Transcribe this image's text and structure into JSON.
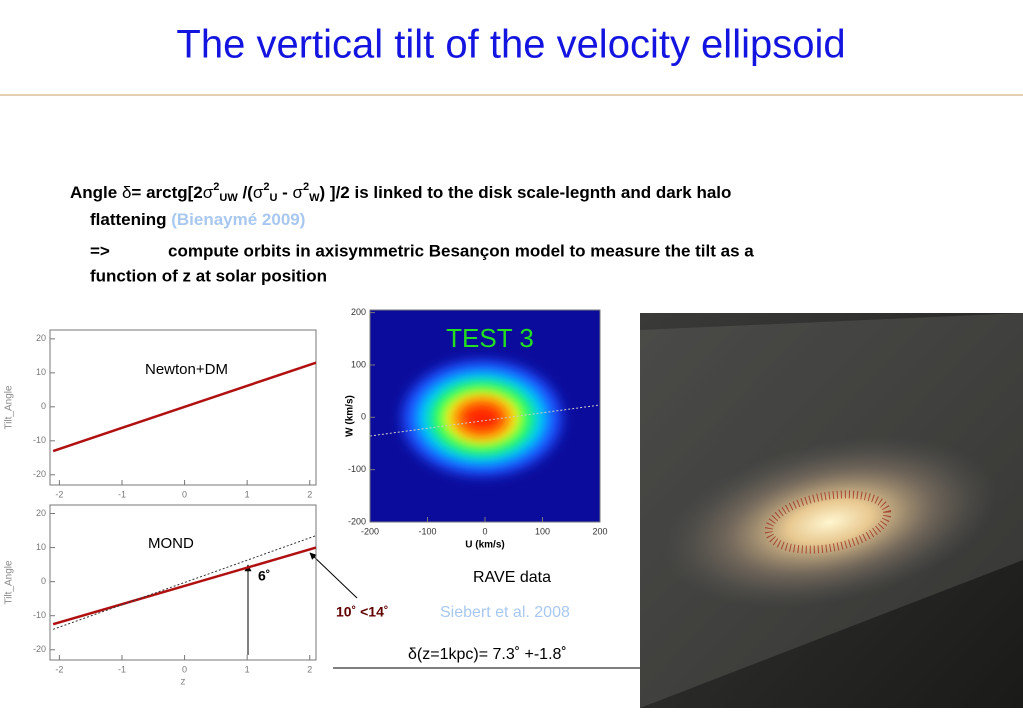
{
  "title": "The vertical tilt of the velocity ellipsoid",
  "bullet1": [
    "Angle ",
    "δ",
    "= arctg[2",
    "σ",
    "2",
    "UW",
    " /(",
    "σ",
    "2",
    "U",
    " - ",
    "σ",
    "2",
    "W",
    ") ]/2 is linked to the disk scale-legnth and dark halo",
    "flattening ",
    "(Bienaymé 2009)"
  ],
  "bullet2": [
    "=>",
    "compute orbits in axisymmetric Besançon model to measure the tilt as a",
    "function of z at solar position"
  ],
  "panels": [
    {
      "label": "Newton+DM",
      "ylabel": "Tilt_Angle",
      "xlim": [
        -2.15,
        2.1
      ],
      "ylim": [
        -23,
        22.6
      ],
      "xticks": [
        -2,
        -1,
        0,
        1,
        2
      ],
      "yticks": [
        -20,
        -10,
        0,
        10,
        20
      ],
      "series": [
        {
          "color": "#b01010",
          "x": [
            -2.1,
            2.1
          ],
          "values": [
            -13,
            13
          ]
        }
      ]
    },
    {
      "label": "MOND",
      "ylabel": "Tilt_Angle",
      "xlabel": "z",
      "xlim": [
        -2.15,
        2.1
      ],
      "ylim": [
        -23,
        22.5
      ],
      "xticks": [
        -2,
        -1,
        0,
        1,
        2
      ],
      "yticks": [
        -20,
        -10,
        0,
        10,
        20
      ],
      "series": [
        {
          "color": "#b01010",
          "x": [
            -2.1,
            2.1
          ],
          "values": [
            -12.5,
            10
          ]
        },
        {
          "color": "#333333",
          "dotted": true,
          "x": [
            -2.1,
            2.1
          ],
          "values": [
            -14,
            13.5
          ]
        }
      ]
    }
  ],
  "heatmap": {
    "title": "TEST 3",
    "xlabel": "U (km/s)",
    "ylabel": "W (km/s)",
    "xlim": [
      -200,
      200
    ],
    "ylim": [
      -200,
      205
    ],
    "xticks": [
      -200,
      -100,
      0,
      100,
      200
    ],
    "yticks": [
      -200,
      -100,
      0,
      100,
      200
    ]
  },
  "annotations": {
    "six": "6˚",
    "range": "10˚ <14˚",
    "rave": "RAVE data",
    "siebert": "Siebert et al. 2008",
    "delta": "δ(z=1kpc)= 7.3˚ +-1.8˚"
  }
}
